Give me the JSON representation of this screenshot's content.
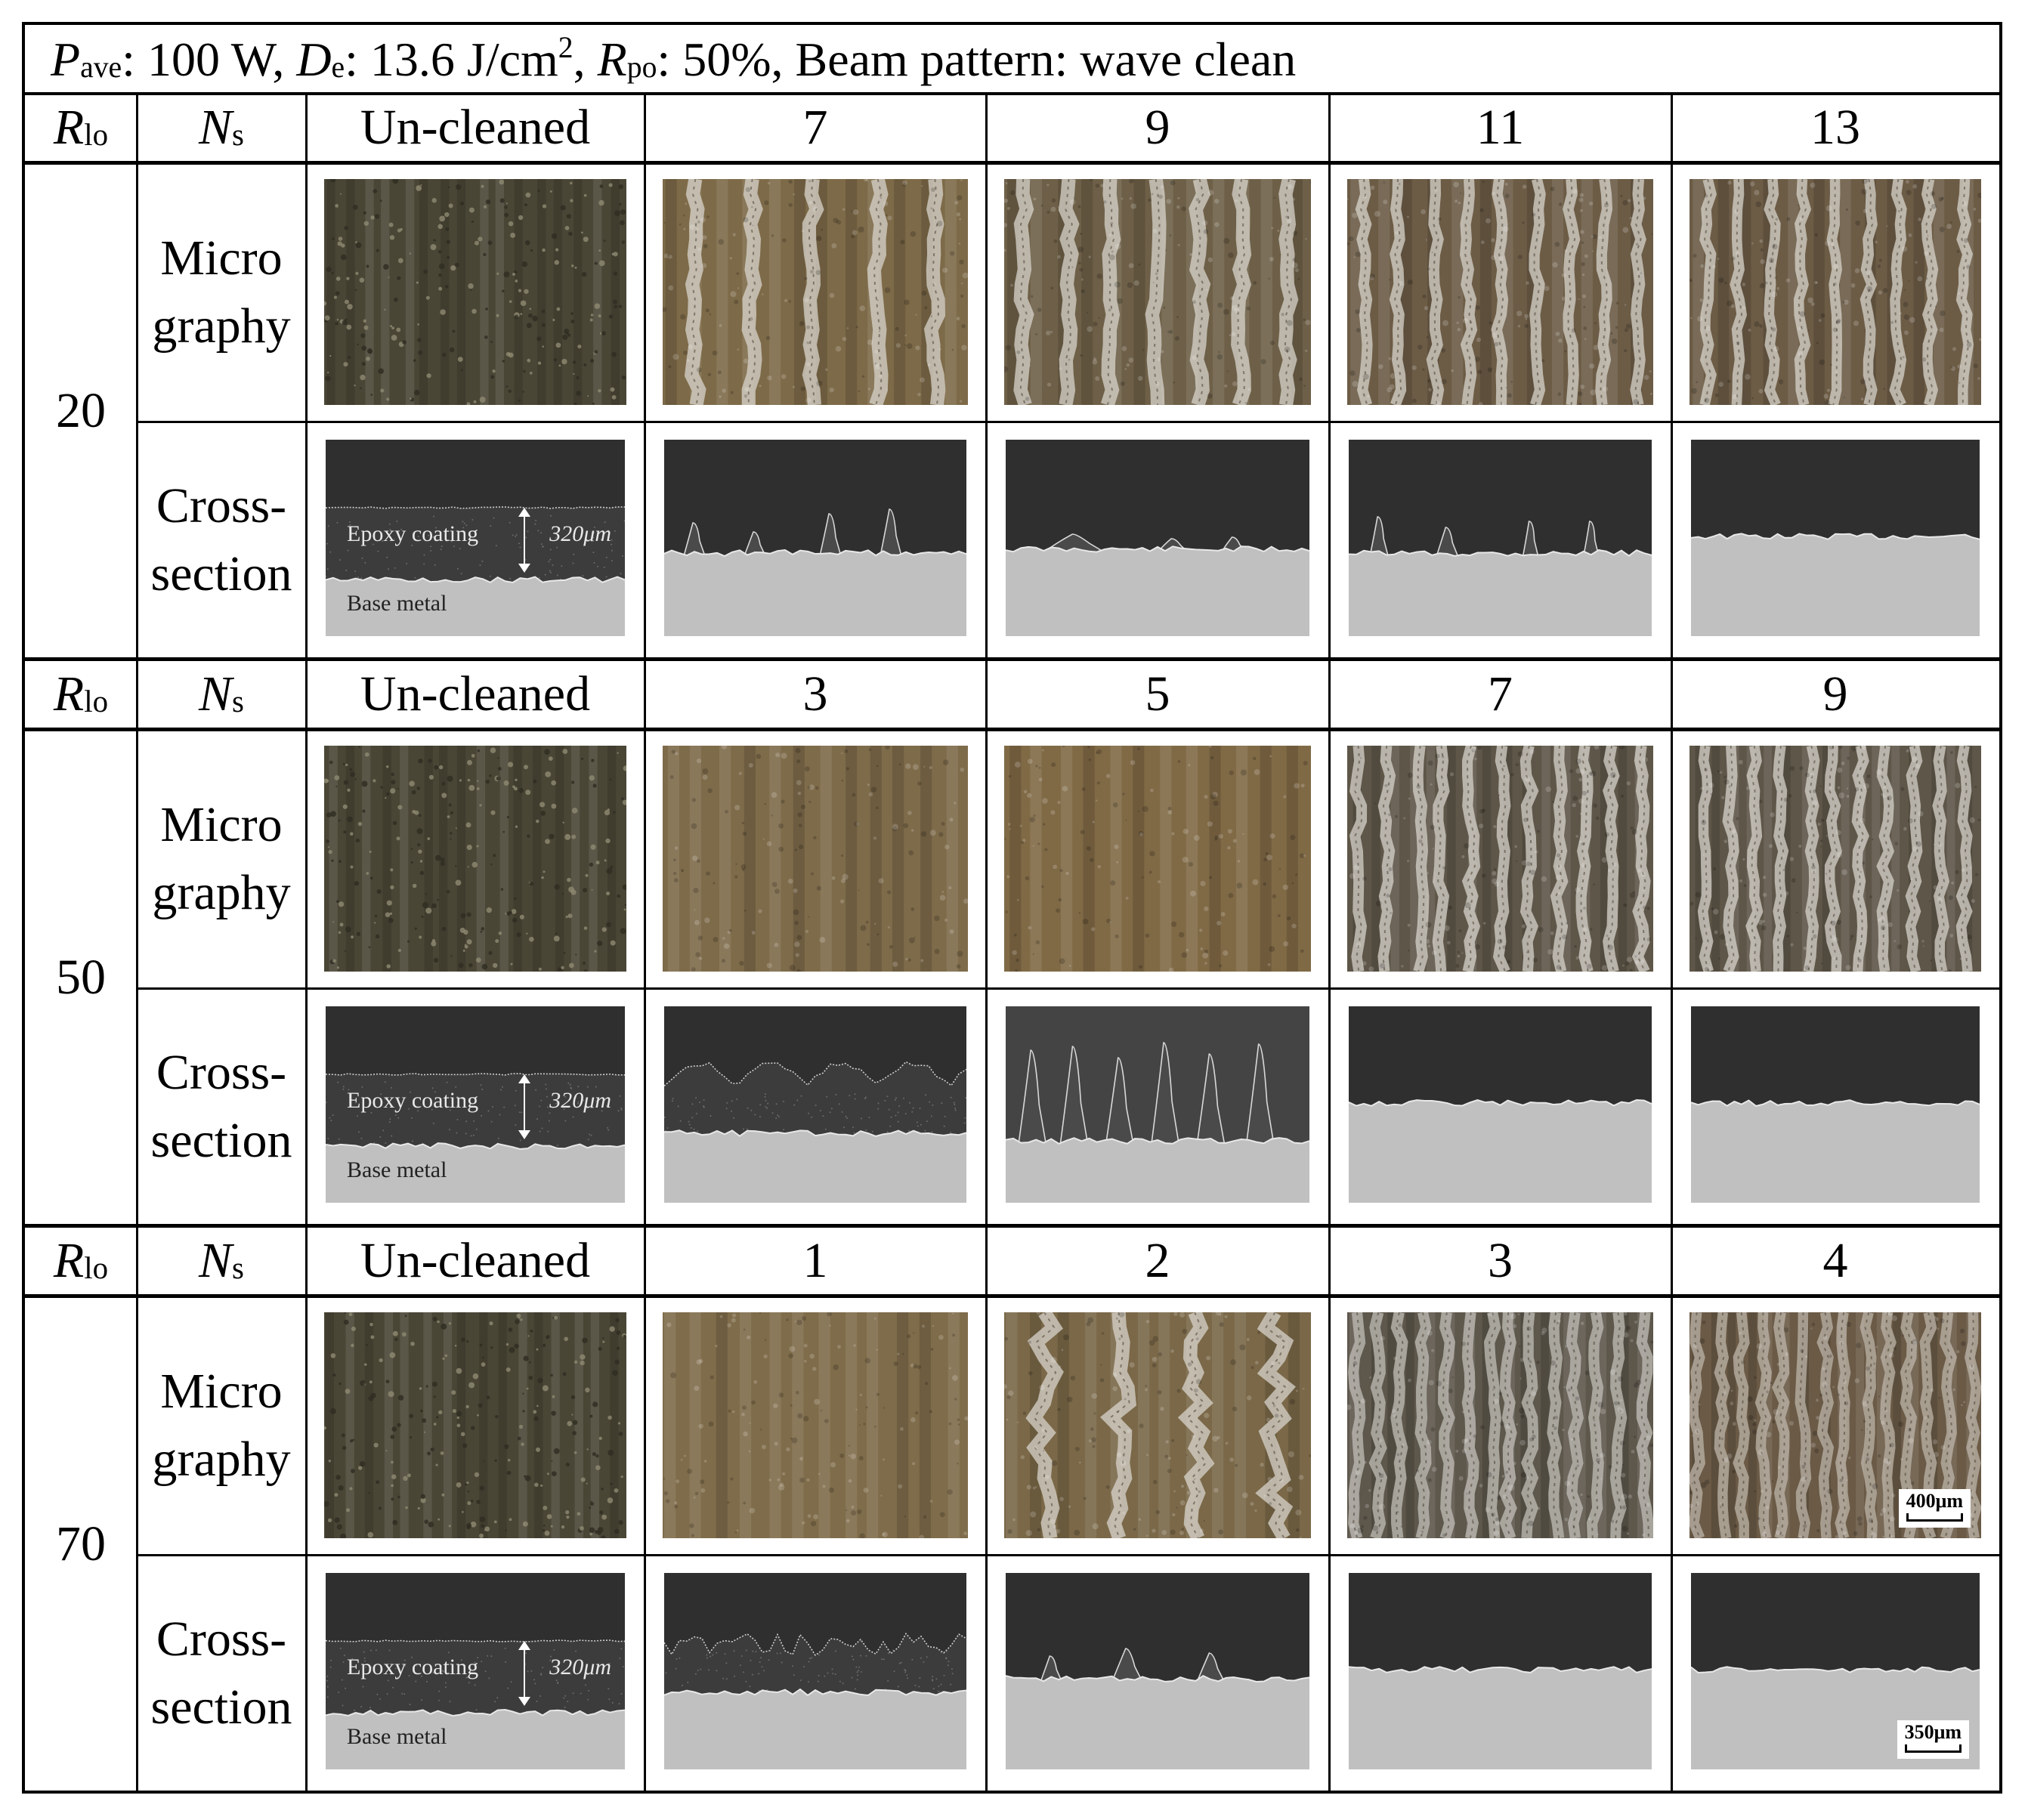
{
  "title": {
    "p_sym": "P",
    "p_sub": "ave",
    "p_val": ": 100 W, ",
    "d_sym": "D",
    "d_sub": "e",
    "d_val": ": 13.6 J/cm",
    "d_sup": "2",
    "d_sep": ", ",
    "r_sym": "R",
    "r_sub": "po",
    "r_val": ": 50%, Beam pattern: wave clean"
  },
  "header_labels": {
    "rlo_sym": "R",
    "rlo_sub": "lo",
    "ns_sym": "N",
    "ns_sub": "s",
    "uncleaned": "Un-cleaned"
  },
  "row_labels": {
    "micro_line1": "Micro",
    "micro_line2": "graphy",
    "cross_line1": "Cross-",
    "cross_line2": "section"
  },
  "uncleaned_cross_labels": {
    "coating": "Epoxy coating",
    "thickness": "320μm",
    "base": "Base metal"
  },
  "scale_bars": {
    "micro": "400μm",
    "cross": "350μm"
  },
  "blocks": [
    {
      "r_lo": "20",
      "ns": [
        "7",
        "9",
        "11",
        "13"
      ],
      "micro_style": [
        "stripes-sparse",
        "stripes-mid",
        "stripes-dense",
        "stripes-dense"
      ],
      "cross_style": [
        "peaks4",
        "residue-low",
        "peaks4-thin",
        "clean"
      ]
    },
    {
      "r_lo": "50",
      "ns": [
        "3",
        "5",
        "7",
        "9"
      ],
      "micro_style": [
        "brown-wavy",
        "brown-wavy-strong",
        "gray-dense",
        "gray-dense"
      ],
      "cross_style": [
        "coating-wavy",
        "tall-peaks6",
        "clean",
        "clean"
      ]
    },
    {
      "r_lo": "70",
      "ns": [
        "1",
        "2",
        "3",
        "4"
      ],
      "micro_style": [
        "brown-fine",
        "brown-patchy",
        "gray-fine",
        "rust-fine"
      ],
      "cross_style": [
        "coating-jagged",
        "residue-peaks3",
        "clean",
        "clean"
      ]
    }
  ],
  "colors": {
    "border": "#000000",
    "micro_uncleaned": "#4a4636",
    "micro_brown": "#7d6a48",
    "micro_gray": "#a9a6a0",
    "cross_dark": "#2f2f2f",
    "cross_coating": "#3c3c3c",
    "cross_base": "#c0c0c0"
  }
}
